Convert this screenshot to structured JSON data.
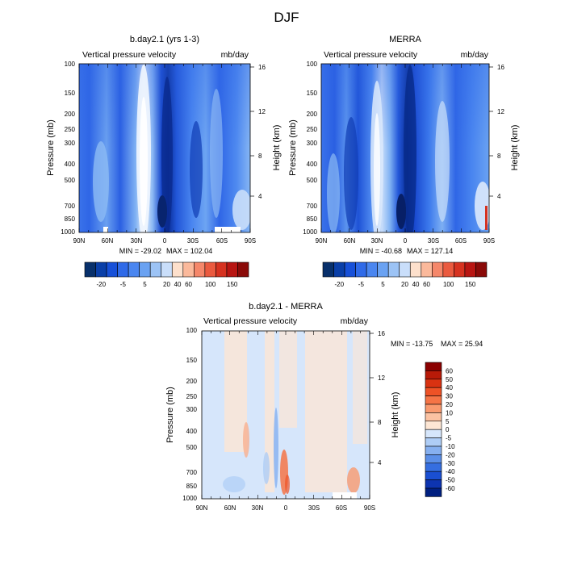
{
  "chart_data": {
    "title": "DJF",
    "panels": [
      {
        "type": "heatmap",
        "title": "b.day2.1 (yrs 1-3)",
        "variable": "Vertical pressure velocity",
        "units": "mb/day",
        "xlabel": "",
        "ylabel": "Pressure (mb)",
        "ylabel_right": "Height (km)",
        "x_ticks": [
          "90N",
          "60N",
          "30N",
          "0",
          "30S",
          "60S",
          "90S"
        ],
        "y_ticks": [
          "100",
          "150",
          "200",
          "250",
          "300",
          "400",
          "500",
          "700",
          "850",
          "1000"
        ],
        "height_ticks": [
          "16",
          "12",
          "8",
          "4"
        ],
        "min_label": "MIN = -29.02",
        "max_label": "MAX = 102.04",
        "levels": [
          "-20",
          "-5",
          "5",
          "20",
          "40",
          "60",
          "100",
          "150"
        ],
        "colorbar_colors": [
          "#08306b",
          "#0a3fa8",
          "#1750d8",
          "#2f6ae8",
          "#4a86f0",
          "#6aa2f2",
          "#9cc3f5",
          "#c9defa",
          "#fde0cc",
          "#fbb99b",
          "#f5876a",
          "#ea5a3f",
          "#d63220",
          "#b81512",
          "#8a0a08"
        ]
      },
      {
        "type": "heatmap",
        "title": "MERRA",
        "variable": "Vertical pressure velocity",
        "units": "mb/day",
        "xlabel": "",
        "ylabel": "Pressure (mb)",
        "ylabel_right": "Height (km)",
        "x_ticks": [
          "90N",
          "60N",
          "30N",
          "0",
          "30S",
          "60S",
          "90S"
        ],
        "y_ticks": [
          "100",
          "150",
          "200",
          "250",
          "300",
          "400",
          "500",
          "700",
          "850",
          "1000"
        ],
        "height_ticks": [
          "16",
          "12",
          "8",
          "4"
        ],
        "min_label": "MIN = -40.68",
        "max_label": "MAX = 127.14",
        "levels": [
          "-20",
          "-5",
          "5",
          "20",
          "40",
          "60",
          "100",
          "150"
        ],
        "colorbar_colors": [
          "#08306b",
          "#0a3fa8",
          "#1750d8",
          "#2f6ae8",
          "#4a86f0",
          "#6aa2f2",
          "#9cc3f5",
          "#c9defa",
          "#fde0cc",
          "#fbb99b",
          "#f5876a",
          "#ea5a3f",
          "#d63220",
          "#b81512",
          "#8a0a08"
        ]
      },
      {
        "type": "heatmap",
        "title": "b.day2.1 - MERRA",
        "variable": "Vertical pressure velocity",
        "units": "mb/day",
        "xlabel": "",
        "ylabel": "Pressure (mb)",
        "ylabel_right": "Height (km)",
        "x_ticks": [
          "90N",
          "60N",
          "30N",
          "0",
          "30S",
          "60S",
          "90S"
        ],
        "y_ticks": [
          "100",
          "150",
          "200",
          "250",
          "300",
          "400",
          "500",
          "700",
          "850",
          "1000"
        ],
        "height_ticks": [
          "16",
          "12",
          "8",
          "4"
        ],
        "min_label": "MIN = -13.75",
        "max_label": "MAX =  25.94",
        "levels": [
          "60",
          "50",
          "40",
          "30",
          "20",
          "10",
          "5",
          "0",
          "-5",
          "-10",
          "-20",
          "-30",
          "-40",
          "-50",
          "-60"
        ],
        "colorbar_colors": [
          "#8b0000",
          "#b81a08",
          "#d93211",
          "#ee5226",
          "#f57446",
          "#f99a6f",
          "#fbc2a2",
          "#fde6d4",
          "#d6e6fb",
          "#aecdf6",
          "#86b0f0",
          "#5b8fe8",
          "#356ee0",
          "#1a4fd2",
          "#0d34b0",
          "#001f80"
        ]
      }
    ]
  }
}
